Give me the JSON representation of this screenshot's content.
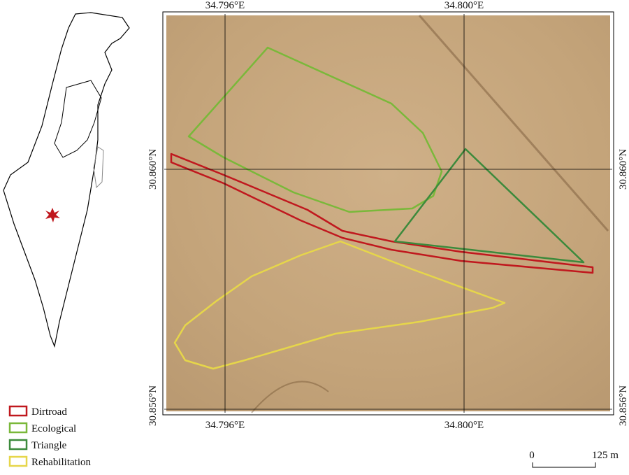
{
  "map": {
    "top_labels": [
      "34.796°E",
      "34.800°E"
    ],
    "bottom_labels": [
      "34.796°E",
      "34.800°E"
    ],
    "left_labels": [
      "30.860°N",
      "30.856°N"
    ],
    "right_labels": [
      "30.860°N",
      "30.856°N"
    ],
    "legend": [
      {
        "label": "Dirtroad",
        "color": "#c0181e"
      },
      {
        "label": "Ecological",
        "color": "#7ab83a"
      },
      {
        "label": "Triangle",
        "color": "#3c8a3c"
      },
      {
        "label": "Rehabilitation",
        "color": "#e6d64a"
      }
    ],
    "scale": {
      "start": "0",
      "end": "125 m"
    }
  }
}
